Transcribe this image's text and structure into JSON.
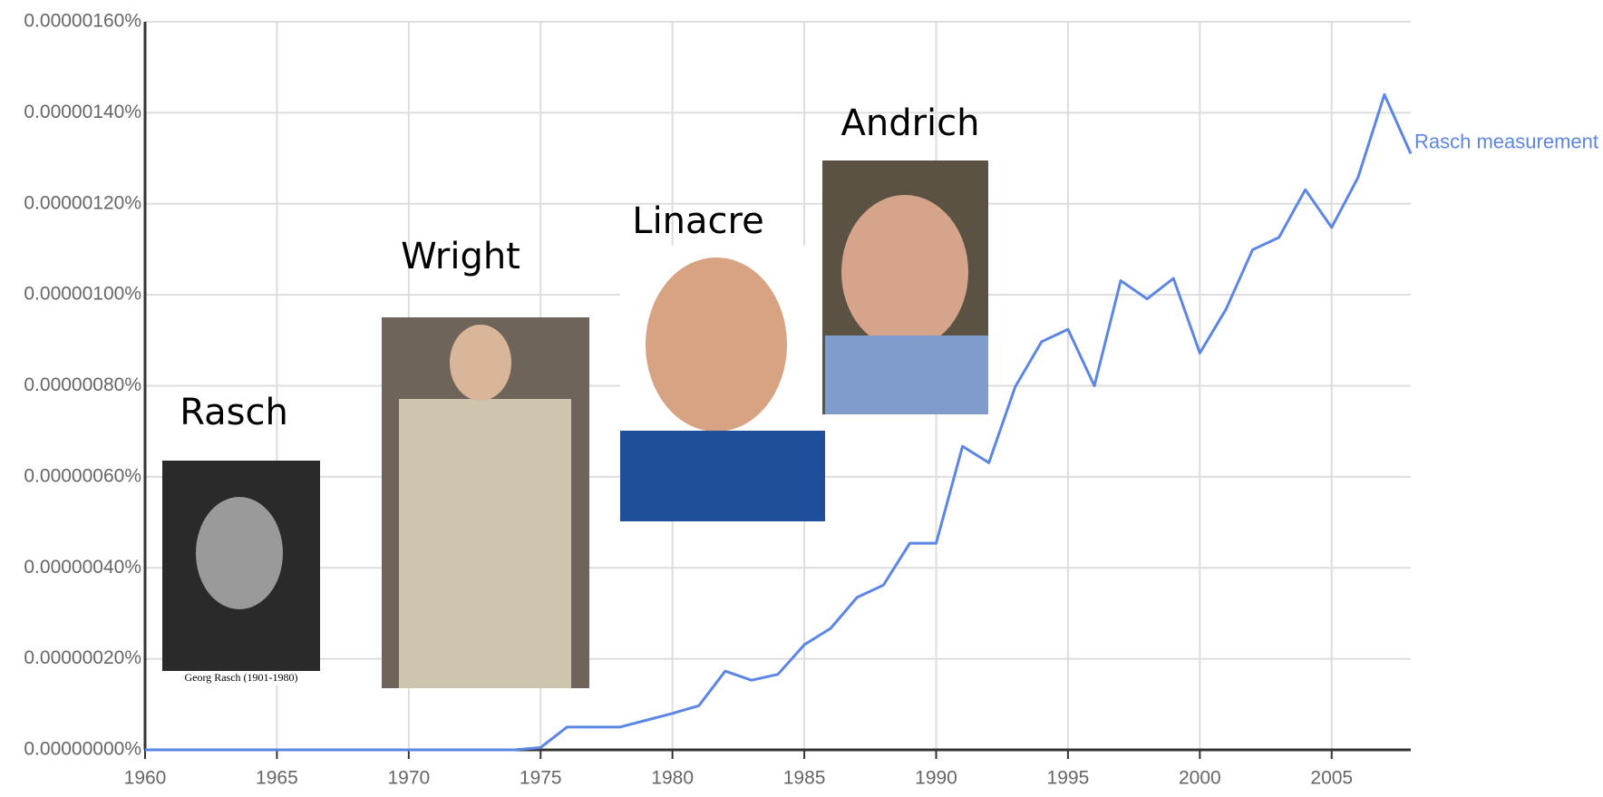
{
  "chart_data": {
    "type": "line",
    "x": [
      1960,
      1961,
      1962,
      1963,
      1964,
      1965,
      1966,
      1967,
      1968,
      1969,
      1970,
      1971,
      1972,
      1973,
      1974,
      1975,
      1976,
      1977,
      1978,
      1979,
      1980,
      1981,
      1982,
      1983,
      1984,
      1985,
      1986,
      1987,
      1988,
      1989,
      1990,
      1991,
      1992,
      1993,
      1994,
      1995,
      1996,
      1997,
      1998,
      1999,
      2000,
      2001,
      2002,
      2003,
      2004,
      2005,
      2006,
      2007,
      2008
    ],
    "series": [
      {
        "name": "Rasch measurement",
        "color": "#5b86e5",
        "values": [
          0,
          0,
          0,
          0,
          0,
          0,
          0,
          0,
          0,
          0,
          0,
          0,
          0,
          0,
          0,
          5e-09,
          5e-08,
          5e-08,
          5e-08,
          6.5e-08,
          8e-08,
          9.7e-08,
          1.73e-07,
          1.53e-07,
          1.66e-07,
          2.31e-07,
          2.67e-07,
          3.35e-07,
          3.62e-07,
          4.54e-07,
          4.54e-07,
          6.67e-07,
          6.31e-07,
          7.98e-07,
          8.97e-07,
          9.24e-07,
          8e-07,
          1.031e-06,
          9.91e-07,
          1.036e-06,
          8.72e-07,
          9.69e-07,
          1.099e-06,
          1.126e-06,
          1.231e-06,
          1.148e-06,
          1.258e-06,
          1.44e-06,
          1.31e-06
        ]
      }
    ],
    "xlim": [
      1960,
      2008
    ],
    "xticks": [
      1960,
      1965,
      1970,
      1975,
      1980,
      1985,
      1990,
      1995,
      2000,
      2005
    ],
    "ylim": [
      0,
      1.6e-06
    ],
    "yticks": [
      {
        "value": 0,
        "label": "0.00000000%"
      },
      {
        "value": 2e-07,
        "label": "0.00000020%"
      },
      {
        "value": 4e-07,
        "label": "0.00000040%"
      },
      {
        "value": 6e-07,
        "label": "0.00000060%"
      },
      {
        "value": 8e-07,
        "label": "0.00000080%"
      },
      {
        "value": 1e-06,
        "label": "0.00000100%"
      },
      {
        "value": 1.2e-06,
        "label": "0.00000120%"
      },
      {
        "value": 1.4e-06,
        "label": "0.00000140%"
      },
      {
        "value": 1.6e-06,
        "label": "0.00000160%"
      }
    ],
    "grid": true,
    "annotations": [
      "Rasch",
      "Wright",
      "Linacre",
      "Andrich"
    ],
    "photo_caption": "Georg Rasch (1901-1980)"
  }
}
